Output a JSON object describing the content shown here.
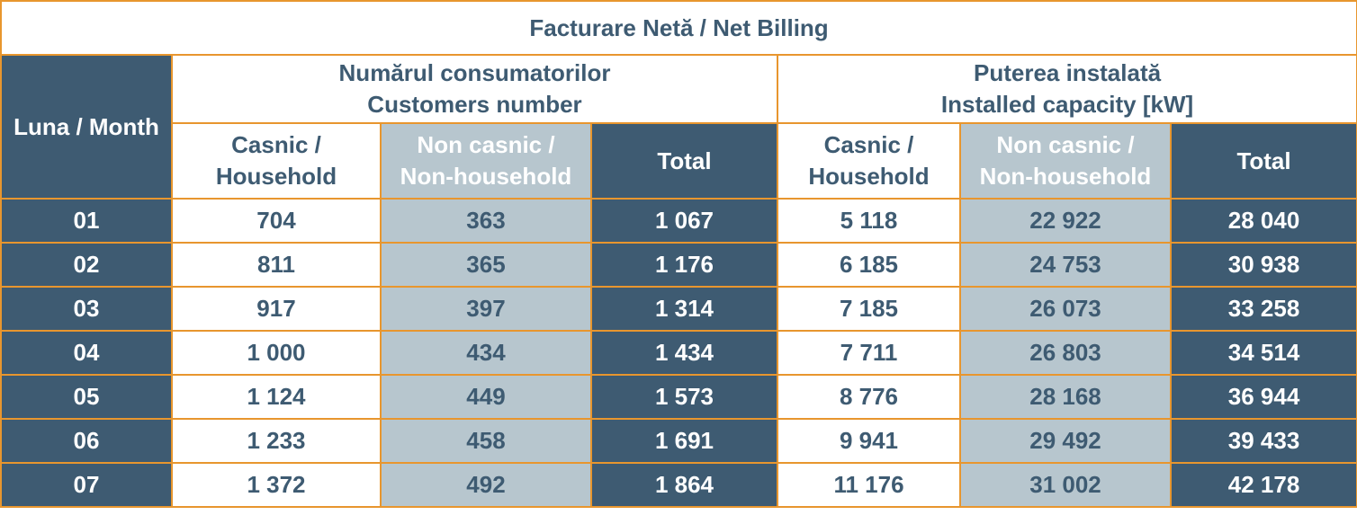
{
  "chart_data": {
    "type": "table",
    "title": "Facturare Netă / Net Billing",
    "month_header": "Luna / Month",
    "groups": [
      {
        "line1": "Numărul consumatorilor",
        "line2": "Customers number"
      },
      {
        "line1": "Puterea instalată",
        "line2": "Installed capacity [kW]"
      }
    ],
    "subheaders": [
      {
        "line1": "Casnic /",
        "line2": "Household"
      },
      {
        "line1": "Non casnic /",
        "line2": "Non-household"
      },
      {
        "line1": "Total",
        "line2": ""
      },
      {
        "line1": "Casnic /",
        "line2": "Household"
      },
      {
        "line1": "Non casnic /",
        "line2": "Non-household"
      },
      {
        "line1": "Total",
        "line2": ""
      }
    ],
    "rows": [
      {
        "month": "01",
        "cells": [
          "704",
          "363",
          "1 067",
          "5 118",
          "22 922",
          "28 040"
        ]
      },
      {
        "month": "02",
        "cells": [
          "811",
          "365",
          "1 176",
          "6 185",
          "24 753",
          "30 938"
        ]
      },
      {
        "month": "03",
        "cells": [
          "917",
          "397",
          "1 314",
          "7 185",
          "26 073",
          "33 258"
        ]
      },
      {
        "month": "04",
        "cells": [
          "1 000",
          "434",
          "1 434",
          "7 711",
          "26 803",
          "34 514"
        ]
      },
      {
        "month": "05",
        "cells": [
          "1 124",
          "449",
          "1 573",
          "8 776",
          "28 168",
          "36 944"
        ]
      },
      {
        "month": "06",
        "cells": [
          "1 233",
          "458",
          "1 691",
          "9 941",
          "29 492",
          "39 433"
        ]
      },
      {
        "month": "07",
        "cells": [
          "1 372",
          "492",
          "1 864",
          "11 176",
          "31 002",
          "42 178"
        ]
      }
    ]
  }
}
